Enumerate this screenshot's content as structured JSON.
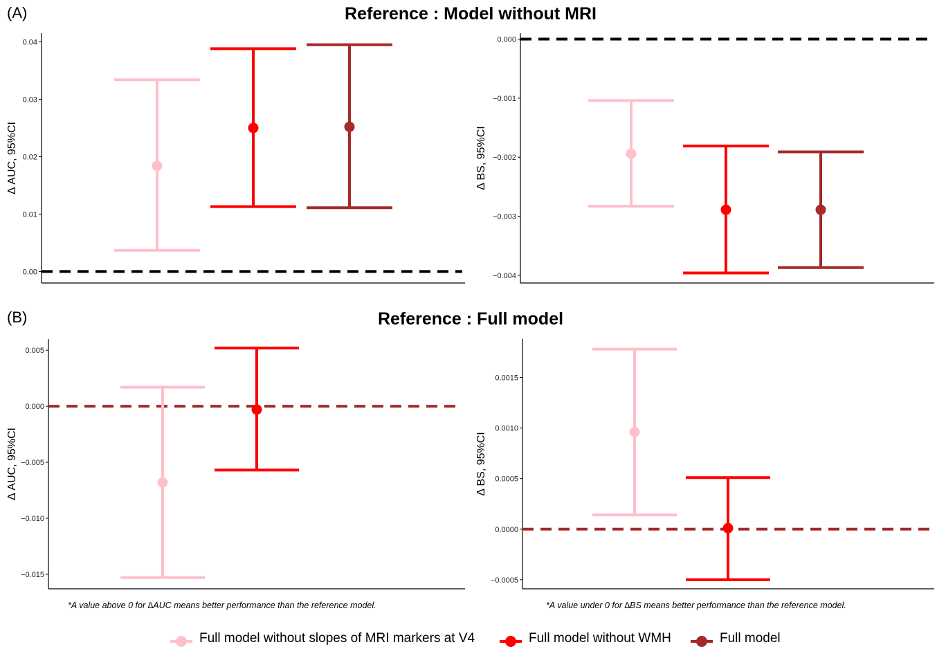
{
  "panel_tags": {
    "a": "(A)",
    "b": "(B)"
  },
  "section_titles": {
    "a": "Reference : Model without MRI",
    "b": "Reference : Full model"
  },
  "notes": {
    "auc": "*A value above 0 for ∆AUC means better performance than the reference model.",
    "bs": "*A value under 0 for ∆BS means better performance than the reference model."
  },
  "colors": {
    "Full model without slopes of MRI markers at V4": "#ffc0cb",
    "Full model without WMH": "#ff0000",
    "Full model": "#a52a2a",
    "reference_line_a": "#000000",
    "reference_line_b": "#a52a2a"
  },
  "legend": [
    {
      "label": "Full model without slopes of MRI markers at V4",
      "color": "#ffc0cb"
    },
    {
      "label": "Full model without WMH",
      "color": "#ff0000"
    },
    {
      "label": "Full model",
      "color": "#a52a2a"
    }
  ],
  "chart_data": [
    {
      "id": "A-auc",
      "type": "errorbar",
      "ylabel": "Δ AUC, 95%CI",
      "ylim": [
        -0.002,
        0.0415
      ],
      "yticks": [
        0.0,
        0.01,
        0.02,
        0.03,
        0.04
      ],
      "tick_labels": [
        "0.00",
        "0.01",
        "0.02",
        "0.03",
        "0.04"
      ],
      "reference_line": 0,
      "reference_color": "#000000",
      "series": [
        {
          "name": "Full model without slopes of MRI markers at V4",
          "estimate": 0.0184,
          "lower": 0.0037,
          "upper": 0.0334,
          "color": "#ffc0cb"
        },
        {
          "name": "Full model without WMH",
          "estimate": 0.025,
          "lower": 0.0113,
          "upper": 0.0388,
          "color": "#ff0000"
        },
        {
          "name": "Full model",
          "estimate": 0.0252,
          "lower": 0.0111,
          "upper": 0.0395,
          "color": "#a52a2a"
        }
      ]
    },
    {
      "id": "A-bs",
      "type": "errorbar",
      "ylabel": "Δ BS, 95%CI",
      "ylim": [
        -0.00413,
        0.0001
      ],
      "yticks": [
        0.0,
        -0.001,
        -0.002,
        -0.003,
        -0.004
      ],
      "tick_labels": [
        "0.000",
        "−0.001",
        "−0.002",
        "−0.003",
        "−0.004"
      ],
      "reference_line": 0,
      "reference_color": "#000000",
      "series": [
        {
          "name": "Full model without slopes of MRI markers at V4",
          "estimate": -0.00194,
          "lower": -0.00283,
          "upper": -0.00104,
          "color": "#ffc0cb"
        },
        {
          "name": "Full model without WMH",
          "estimate": -0.00289,
          "lower": -0.00396,
          "upper": -0.00181,
          "color": "#ff0000"
        },
        {
          "name": "Full model",
          "estimate": -0.00289,
          "lower": -0.00387,
          "upper": -0.00191,
          "color": "#a52a2a"
        }
      ]
    },
    {
      "id": "B-auc",
      "type": "errorbar",
      "ylabel": "Δ AUC, 95%CI",
      "ylim": [
        -0.0163,
        0.006
      ],
      "yticks": [
        0.005,
        0.0,
        -0.005,
        -0.01,
        -0.015
      ],
      "tick_labels": [
        "0.005",
        "0.000",
        "−0.005",
        "−0.010",
        "−0.015"
      ],
      "reference_line": 0,
      "reference_color": "#a52a2a",
      "series": [
        {
          "name": "Full model without slopes of MRI markers at V4",
          "estimate": -0.0068,
          "lower": -0.0153,
          "upper": 0.0017,
          "color": "#ffc0cb"
        },
        {
          "name": "Full model without WMH",
          "estimate": -0.0003,
          "lower": -0.0057,
          "upper": 0.0052,
          "color": "#ff0000"
        }
      ]
    },
    {
      "id": "B-bs",
      "type": "errorbar",
      "ylabel": "Δ BS, 95%CI",
      "ylim": [
        -0.00059,
        0.00188
      ],
      "yticks": [
        0.0015,
        0.001,
        0.0005,
        0.0,
        -0.0005
      ],
      "tick_labels": [
        "0.0015",
        "0.0010",
        "0.0005",
        "0.0000",
        "−0.0005"
      ],
      "reference_line": 0,
      "reference_color": "#a52a2a",
      "series": [
        {
          "name": "Full model without slopes of MRI markers at V4",
          "estimate": 0.00096,
          "lower": 0.00014,
          "upper": 0.00178,
          "color": "#ffc0cb"
        },
        {
          "name": "Full model without WMH",
          "estimate": 1e-05,
          "lower": -0.0005,
          "upper": 0.00051,
          "color": "#ff0000"
        }
      ]
    }
  ]
}
